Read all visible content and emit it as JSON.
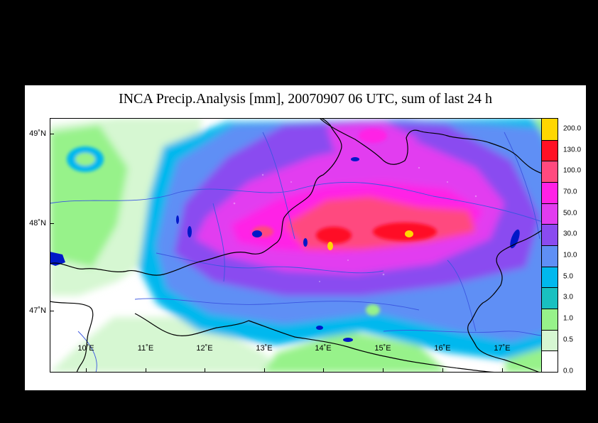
{
  "title": "INCA Precip.Analysis [mm], 20070907 06 UTC, sum of last 24 h",
  "lat_labels": [
    "49˚N",
    "48˚N",
    "47˚N"
  ],
  "lon_labels": [
    "10˚E",
    "11˚E",
    "12˚E",
    "13˚E",
    "14˚E",
    "15˚E",
    "16˚E",
    "17˚E"
  ],
  "legend": {
    "levels": [
      "0.0",
      "0.5",
      "1.0",
      "3.0",
      "5.0",
      "10.0",
      "30.0",
      "50.0",
      "70.0",
      "100.0",
      "130.0",
      "200.0"
    ],
    "colors": [
      "#ffffff",
      "#d6f7d2",
      "#97f28a",
      "#19c0c0",
      "#00b8ee",
      "#5f8ff5",
      "#8a4bf0",
      "#e23cf0",
      "#ff21e6",
      "#ff4a7f",
      "#ff1125",
      "#ffd700"
    ]
  },
  "map": {
    "background_color": "#000000",
    "panel_color": "#ffffff",
    "border_color": "#000000",
    "river_color": "#3b56e0",
    "lake_color": "#0018c8"
  }
}
